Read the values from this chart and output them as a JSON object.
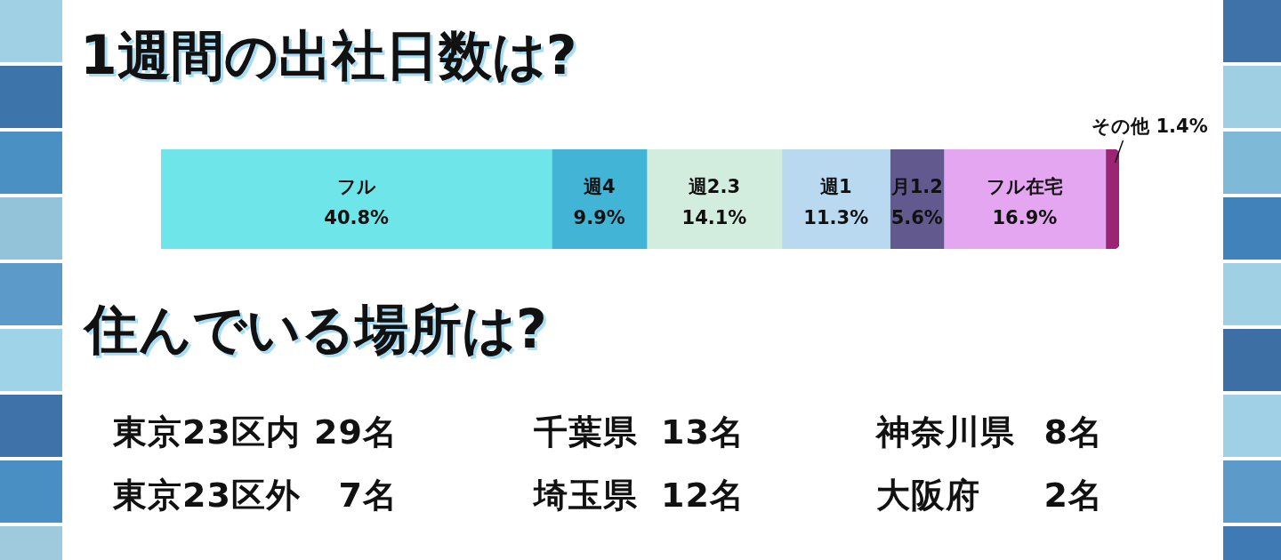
{
  "chart_data": [
    {
      "type": "bar",
      "title": "1週間の出社日数は?",
      "orientation": "horizontal",
      "stacked": true,
      "categories": [
        null
      ],
      "xlim": [
        0,
        100
      ],
      "tick_labels": false,
      "legend": false,
      "series": [
        {
          "name": "フル",
          "color": "#6de5e9",
          "values": [
            40.8
          ],
          "value_labels": [
            "40.8%"
          ]
        },
        {
          "name": "週4",
          "color": "#42b5d6",
          "values": [
            9.9
          ],
          "value_labels": [
            "9.9%"
          ]
        },
        {
          "name": "週2.3",
          "color": "#d2ecdd",
          "values": [
            14.1
          ],
          "value_labels": [
            "14.1%"
          ]
        },
        {
          "name": "週1",
          "color": "#b9d9f0",
          "values": [
            11.3
          ],
          "value_labels": [
            "11.3%"
          ]
        },
        {
          "name": "月1.2",
          "color": "#625a8f",
          "values": [
            5.6
          ],
          "value_labels": [
            "5.6%"
          ]
        },
        {
          "name": "フル在宅",
          "color": "#e4a6f0",
          "values": [
            16.9
          ],
          "value_labels": [
            "16.9%"
          ]
        },
        {
          "name": "その他",
          "color": "#9b2474",
          "values": [
            1.4
          ],
          "value_labels": [
            "1.4%"
          ]
        }
      ]
    },
    {
      "type": "other",
      "title": "住んでいる場所は?",
      "categories": [
        "東京23区内",
        "東京23区外",
        "千葉県",
        "埼玉県",
        "神奈川県",
        "大阪府"
      ],
      "value_labels": [
        "29名",
        "7名",
        "13名",
        "12名",
        "8名",
        "2名"
      ]
    }
  ]
}
